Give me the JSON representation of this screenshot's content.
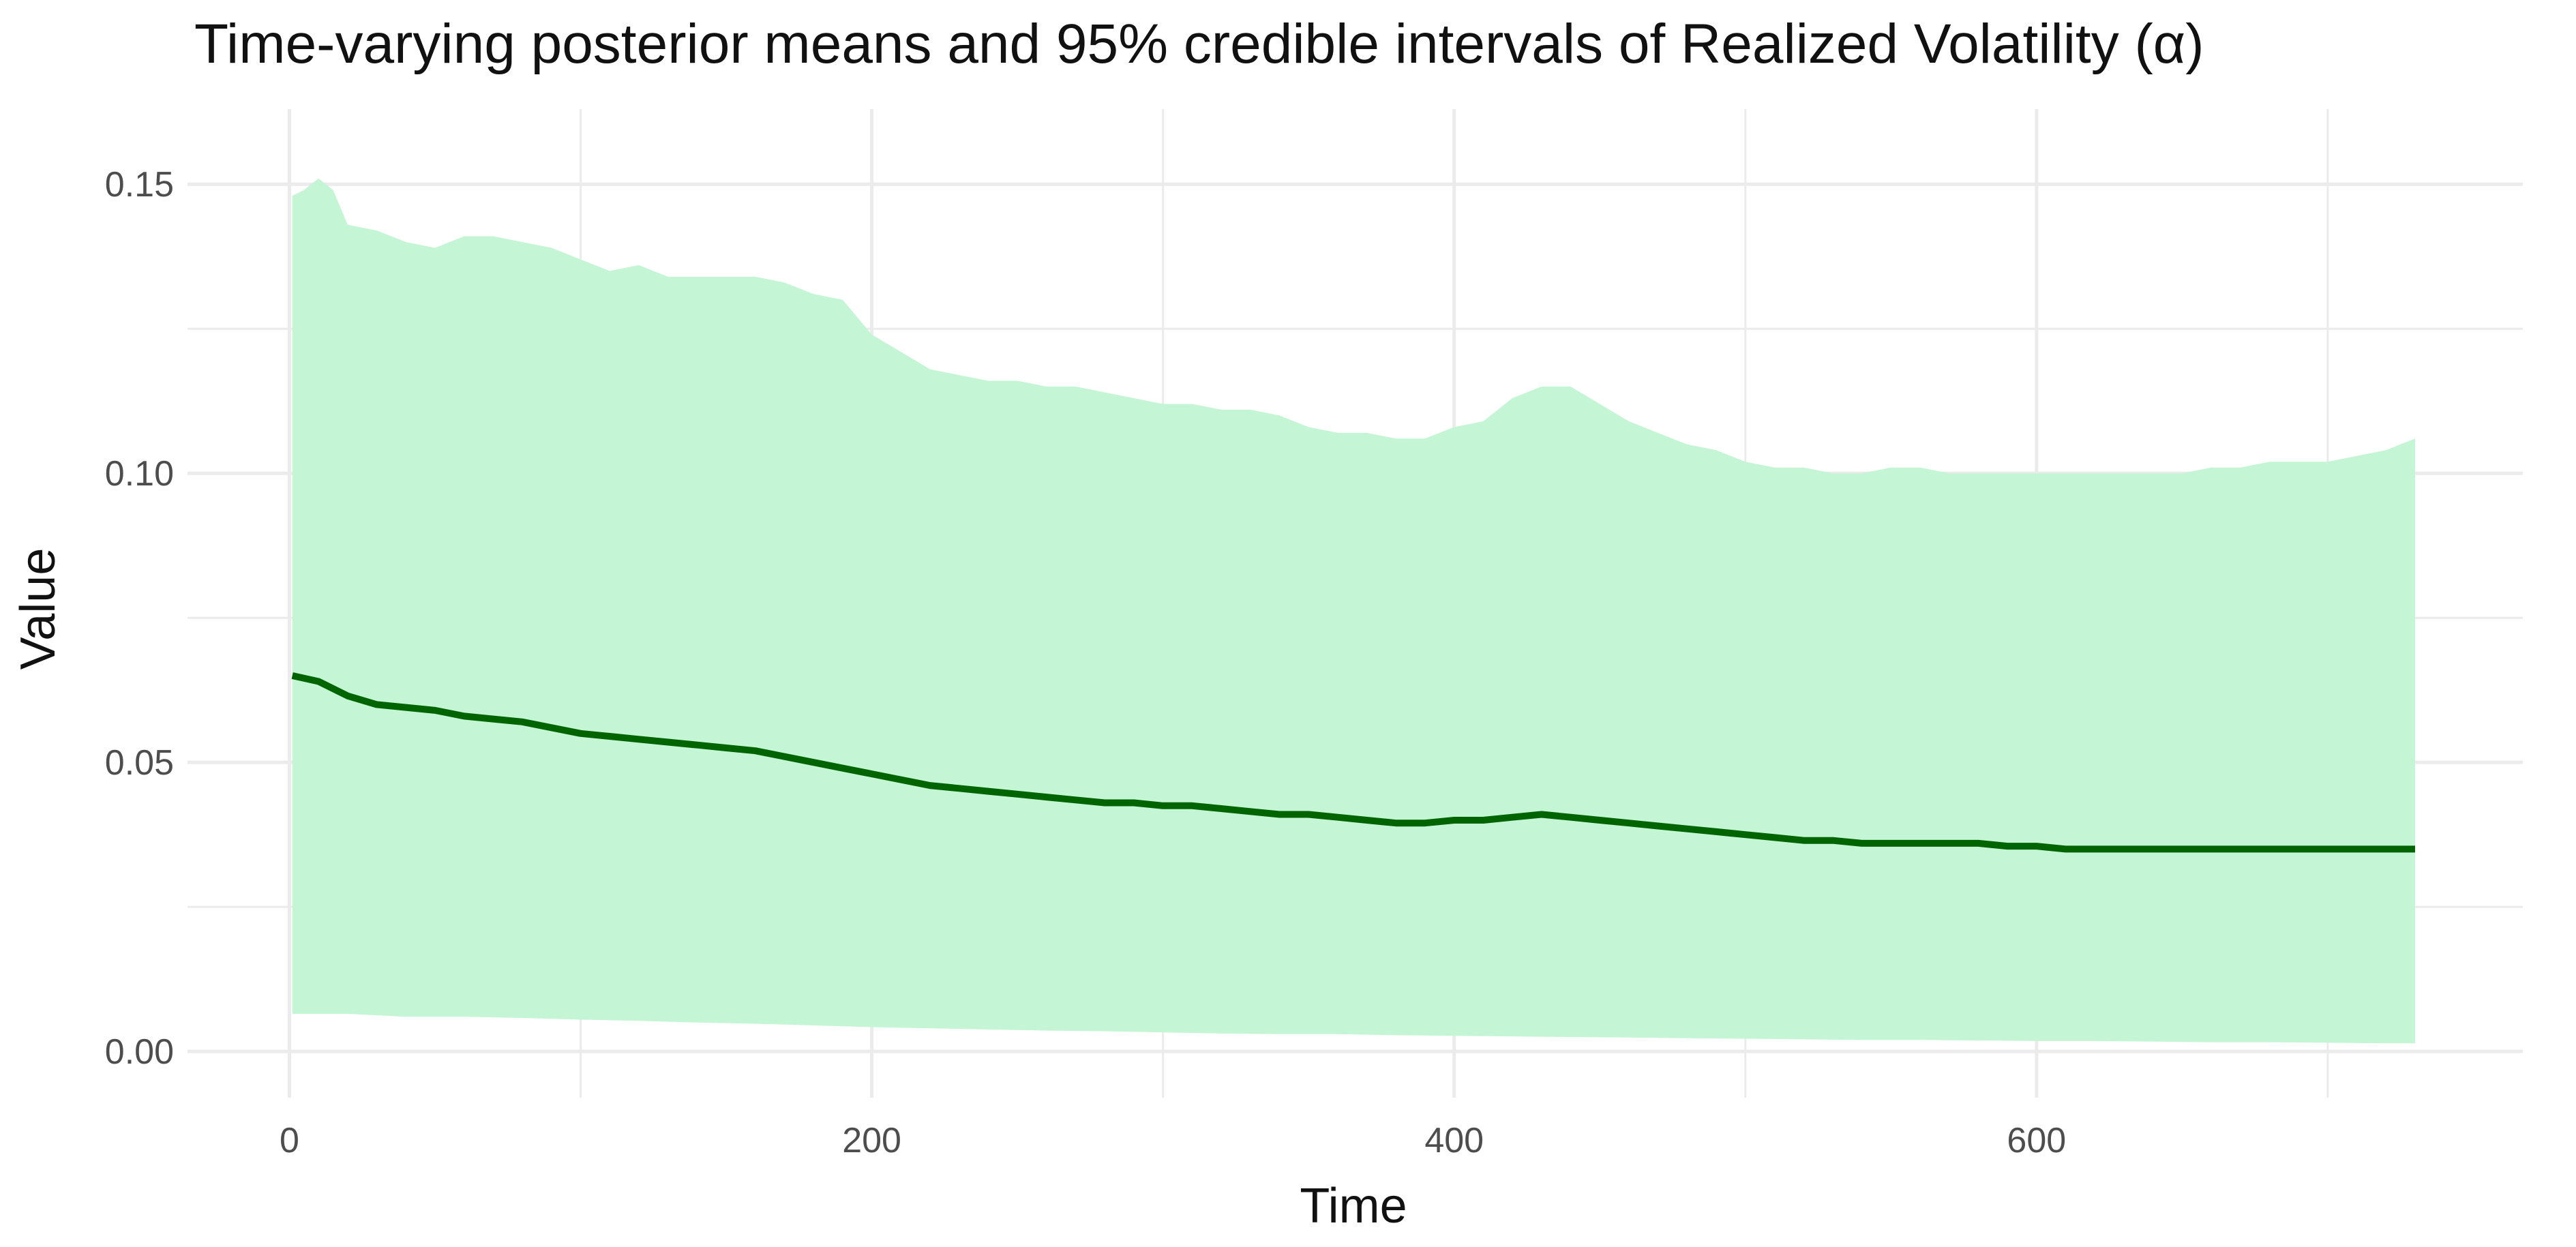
{
  "chart_data": {
    "type": "area",
    "title": "Time-varying posterior means and 95% credible intervals of Realized Volatility (α)",
    "xlabel": "Time",
    "ylabel": "Value",
    "xlim": [
      -35,
      767
    ],
    "ylim": [
      -0.008,
      0.163
    ],
    "x_ticks": [
      0,
      200,
      400,
      600
    ],
    "x_tick_labels": [
      "0",
      "200",
      "400",
      "600"
    ],
    "y_ticks": [
      0.0,
      0.05,
      0.1,
      0.15
    ],
    "y_tick_labels": [
      "0.00",
      "0.05",
      "0.10",
      "0.15"
    ],
    "x_minor_ticks": [
      100,
      300,
      500,
      700
    ],
    "y_minor_ticks": [
      0.025,
      0.075,
      0.125
    ],
    "grid": true,
    "legend": "none",
    "colors": {
      "band": "#c4f5d4",
      "line": "#006400",
      "grid": "#ebebeb"
    },
    "series": [
      {
        "role": "upper",
        "x": [
          1,
          5,
          10,
          15,
          20,
          30,
          40,
          50,
          60,
          70,
          80,
          90,
          100,
          110,
          120,
          130,
          140,
          150,
          160,
          170,
          180,
          190,
          200,
          210,
          220,
          230,
          240,
          250,
          260,
          270,
          280,
          290,
          300,
          310,
          320,
          330,
          340,
          350,
          360,
          370,
          380,
          390,
          400,
          410,
          420,
          430,
          440,
          450,
          460,
          470,
          480,
          490,
          500,
          510,
          520,
          530,
          540,
          550,
          560,
          570,
          580,
          590,
          600,
          610,
          620,
          630,
          640,
          650,
          660,
          670,
          680,
          690,
          700,
          710,
          720,
          730
        ],
        "values": [
          0.148,
          0.149,
          0.151,
          0.149,
          0.143,
          0.142,
          0.14,
          0.139,
          0.141,
          0.141,
          0.14,
          0.139,
          0.137,
          0.135,
          0.136,
          0.134,
          0.134,
          0.134,
          0.134,
          0.133,
          0.131,
          0.13,
          0.124,
          0.121,
          0.118,
          0.117,
          0.116,
          0.116,
          0.115,
          0.115,
          0.114,
          0.113,
          0.112,
          0.112,
          0.111,
          0.111,
          0.11,
          0.108,
          0.107,
          0.107,
          0.106,
          0.106,
          0.108,
          0.109,
          0.113,
          0.115,
          0.115,
          0.112,
          0.109,
          0.107,
          0.105,
          0.104,
          0.102,
          0.101,
          0.101,
          0.1,
          0.1,
          0.101,
          0.101,
          0.1,
          0.1,
          0.1,
          0.1,
          0.1,
          0.1,
          0.1,
          0.1,
          0.1,
          0.101,
          0.101,
          0.102,
          0.102,
          0.102,
          0.103,
          0.104,
          0.106
        ]
      },
      {
        "role": "lower",
        "x": [
          1,
          20,
          40,
          60,
          80,
          100,
          120,
          140,
          160,
          180,
          200,
          220,
          240,
          260,
          280,
          300,
          320,
          340,
          360,
          380,
          400,
          420,
          440,
          460,
          480,
          500,
          520,
          540,
          560,
          580,
          600,
          620,
          640,
          660,
          680,
          700,
          720,
          730
        ],
        "values": [
          0.0065,
          0.0065,
          0.006,
          0.006,
          0.0058,
          0.0055,
          0.0053,
          0.005,
          0.0048,
          0.0045,
          0.0042,
          0.004,
          0.0038,
          0.0036,
          0.0035,
          0.0033,
          0.0031,
          0.003,
          0.003,
          0.0028,
          0.0027,
          0.0026,
          0.0025,
          0.0024,
          0.0023,
          0.0022,
          0.0021,
          0.002,
          0.002,
          0.0019,
          0.0018,
          0.0018,
          0.0017,
          0.0016,
          0.0016,
          0.0015,
          0.0014,
          0.0014
        ]
      },
      {
        "role": "mean",
        "x": [
          1,
          10,
          20,
          30,
          40,
          50,
          60,
          70,
          80,
          90,
          100,
          110,
          120,
          130,
          140,
          150,
          160,
          170,
          180,
          190,
          200,
          210,
          220,
          230,
          240,
          250,
          260,
          270,
          280,
          290,
          300,
          310,
          320,
          330,
          340,
          350,
          360,
          370,
          380,
          390,
          400,
          410,
          420,
          430,
          440,
          450,
          460,
          470,
          480,
          490,
          500,
          510,
          520,
          530,
          540,
          550,
          560,
          570,
          580,
          590,
          600,
          610,
          620,
          630,
          640,
          650,
          660,
          670,
          680,
          690,
          700,
          710,
          720,
          730
        ],
        "values": [
          0.065,
          0.064,
          0.0615,
          0.06,
          0.0595,
          0.059,
          0.058,
          0.0575,
          0.057,
          0.056,
          0.055,
          0.0545,
          0.054,
          0.0535,
          0.053,
          0.0525,
          0.052,
          0.051,
          0.05,
          0.049,
          0.048,
          0.047,
          0.046,
          0.0455,
          0.045,
          0.0445,
          0.044,
          0.0435,
          0.043,
          0.043,
          0.0425,
          0.0425,
          0.042,
          0.0415,
          0.041,
          0.041,
          0.0405,
          0.04,
          0.0395,
          0.0395,
          0.04,
          0.04,
          0.0405,
          0.041,
          0.0405,
          0.04,
          0.0395,
          0.039,
          0.0385,
          0.038,
          0.0375,
          0.037,
          0.0365,
          0.0365,
          0.036,
          0.036,
          0.036,
          0.036,
          0.036,
          0.0355,
          0.0355,
          0.035,
          0.035,
          0.035,
          0.035,
          0.035,
          0.035,
          0.035,
          0.035,
          0.035,
          0.035,
          0.035,
          0.035,
          0.035
        ]
      }
    ]
  }
}
